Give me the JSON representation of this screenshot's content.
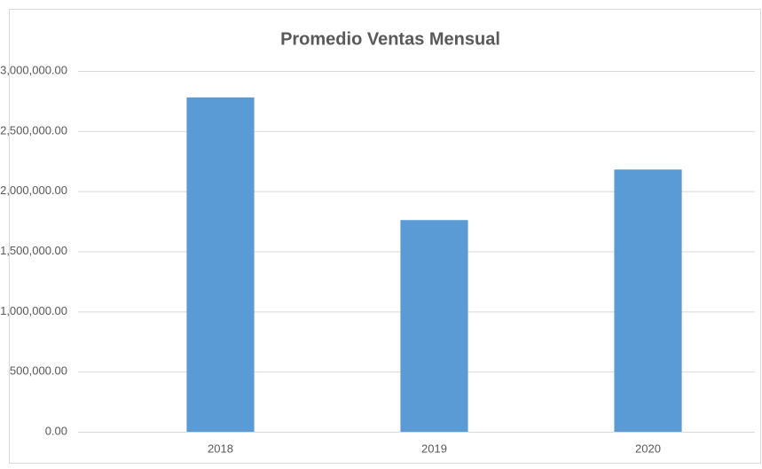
{
  "chart_data": {
    "type": "bar",
    "title": "Promedio Ventas Mensual",
    "categories": [
      "2018",
      "2019",
      "2020"
    ],
    "values": [
      2780000,
      1760000,
      2180000
    ],
    "color": "#5b9bd5",
    "ylim": [
      0,
      3000000
    ],
    "yticks": [
      {
        "value": 0,
        "label": "0.00"
      },
      {
        "value": 500000,
        "label": "500,000.00"
      },
      {
        "value": 1000000,
        "label": "1,000,000.00"
      },
      {
        "value": 1500000,
        "label": "1,500,000.00"
      },
      {
        "value": 2000000,
        "label": "2,000,000.00"
      },
      {
        "value": 2500000,
        "label": "2,500,000.00"
      },
      {
        "value": 3000000,
        "label": "3,000,000.00"
      }
    ],
    "grid": true
  }
}
